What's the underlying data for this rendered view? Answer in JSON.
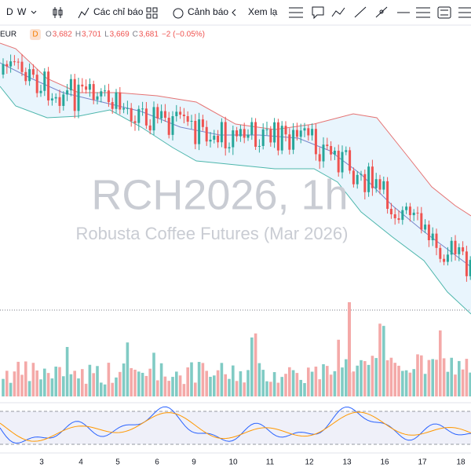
{
  "toolbar": {
    "intervals": [
      "D",
      "W"
    ],
    "indicators": "Các chỉ báo",
    "alerts": "Cảnh báo",
    "replay": "Xem lạ"
  },
  "legend": {
    "symbol": "EUR",
    "badge": "D",
    "items": [
      {
        "label": "O",
        "value": "3,682"
      },
      {
        "label": "H",
        "value": "3,701"
      },
      {
        "label": "L",
        "value": "3,669"
      },
      {
        "label": "C",
        "value": "3,681"
      }
    ],
    "change": "−2 (−0.05%)"
  },
  "watermark": {
    "symbol": "RCH2026, 1h",
    "description": "Robusta Coffee Futures (Mar 2026)"
  },
  "x_axis": [
    "3",
    "4",
    "5",
    "6",
    "9",
    "10",
    "11",
    "12",
    "13",
    "16",
    "17",
    "18"
  ]
}
